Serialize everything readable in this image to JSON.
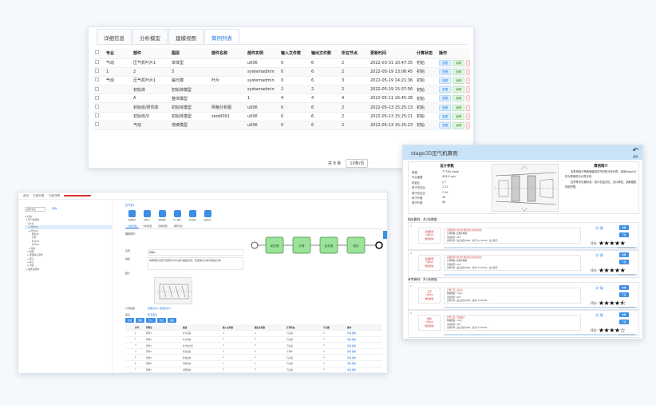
{
  "panel1": {
    "tabs": [
      "详细信息",
      "分析模型",
      "建模视图",
      "算例列表"
    ],
    "active_tab": 3,
    "columns": [
      "",
      "专业",
      "部件",
      "图层",
      "部件名称",
      "部件实例",
      "输入文件数",
      "输出文件数",
      "所在节点",
      "更新时间",
      "计算状态",
      "操作"
    ],
    "rows": [
      [
        "",
        "气动",
        "压气机叶片1",
        "单体型",
        "",
        "u006",
        "0",
        "6",
        "2",
        "2022-03-31 10:47:35",
        "初始"
      ],
      [
        "",
        "1",
        "2",
        "3",
        "",
        "systemadmin",
        "0",
        "6",
        "2",
        "2022-05-19 13:06:45",
        "初始"
      ],
      [
        "",
        "气动",
        "压气机叶片1",
        "扁元模",
        "叶片",
        "systemadmin",
        "0",
        "6",
        "3",
        "2022-05-19 14:21:36",
        "初始"
      ],
      [
        "",
        "",
        "初始体",
        "初始体模型",
        "",
        "systemadmin",
        "2",
        "2",
        "2",
        "2022-05-19 15:37:56",
        "初始"
      ],
      [
        "",
        "",
        "A",
        "整体模型",
        "",
        "1",
        "4",
        "4",
        "4",
        "2022-05-11 16:45:38",
        "初始"
      ],
      [
        "",
        "",
        "初始体/研究体",
        "初始体模型",
        "网格分析图",
        "u006",
        "0",
        "6",
        "2",
        "2022-05-13 15:25:13",
        "初始"
      ],
      [
        "",
        "",
        "初始体/0",
        "初始体模型",
        "zeobl001",
        "u006",
        "0",
        "6",
        "2",
        "2022-05-13 15:25:21",
        "初始"
      ],
      [
        "",
        "",
        "气动",
        "地坡模型",
        "",
        "u006",
        "0",
        "6",
        "2",
        "2022-05-13 15:25:23",
        "初始"
      ]
    ],
    "actions": [
      "查看",
      "编辑",
      "删除"
    ],
    "pager_total": "共 8 条",
    "pager_size": "10条/页",
    "pager_prev": "‹"
  },
  "panel2": {
    "topbar": [
      "首页",
      "方案列表",
      "方案详情"
    ],
    "tree_select": "选择专业",
    "tree_go": "查询",
    "tree_items": [
      "▾ 方案1",
      "  ▾ 压气机结构",
      "    ▾ 叶片",
      "      ▸ 叶片01",
      "      ▸ 叶片02",
      "        · 研究体",
      "        · 分析",
      "        · 叶片03",
      "        · 叶片04",
      "      ▸ 轮盘",
      "    ▸ 机匣",
      "    ▸ 整体静子组件",
      "    ▸ 转子",
      "    ▸ 静子",
      "    ▸ 流道",
      "  ▸ 燃烧室结构"
    ],
    "tree_highlight": 3,
    "crumb": "压气机1",
    "tools": [
      "创建算例",
      "模型树",
      "参数模板",
      "导入模型",
      "导出模型",
      "结果分析"
    ],
    "subtabs": [
      "分析流程",
      "分析模型",
      "建模视图",
      "算例列表"
    ],
    "section_title": "算例简介",
    "form": [
      {
        "label": "名称",
        "value": "算例1"
      },
      {
        "label": "描述",
        "value": "本算例针对压气机转子叶片进行强度分析，包含静力分析与模态分析"
      },
      {
        "label": "图片",
        "value": ""
      },
      {
        "label": "计算结果",
        "value": "结果文件1  结果文件2"
      },
      {
        "label": "备注",
        "value": "暂无备注"
      }
    ],
    "flow_nodes": [
      "前处理",
      "计算",
      "后处理",
      "报告"
    ],
    "buttons": [
      "新增",
      "删除",
      "导入",
      "导出",
      "刷新"
    ],
    "table_columns": [
      "",
      "序号",
      "算例名",
      "描述",
      "输入文件数",
      "输出文件数",
      "计算状态",
      "节点数",
      "操作"
    ],
    "table_rows": [
      [
        "",
        "1",
        "算例1",
        "叶片强度",
        "2",
        "2",
        "已完成",
        "2",
        "查看 删除"
      ],
      [
        "",
        "2",
        "算例2",
        "叶片模态",
        "2",
        "2",
        "已完成",
        "2",
        "查看 删除"
      ],
      [
        "",
        "3",
        "算例3",
        "叶片热分析",
        "2",
        "2",
        "已完成",
        "2",
        "查看 删除"
      ],
      [
        "",
        "4",
        "算例4",
        "轮盘强度",
        "2",
        "2",
        "计算中",
        "2",
        "查看 删除"
      ],
      [
        "",
        "5",
        "算例5",
        "轮盘模态",
        "2",
        "2",
        "已完成",
        "2",
        "查看 删除"
      ],
      [
        "",
        "6",
        "算例6",
        "机匣强度",
        "2",
        "2",
        "已完成",
        "2",
        "查看 删除"
      ],
      [
        "",
        "7",
        "算例7",
        "机匣模态",
        "2",
        "2",
        "已完成",
        "2",
        "查看 删除"
      ]
    ]
  },
  "panel3": {
    "title": "stage35压气机算例",
    "back_label": "返回",
    "params_title": "设计参数",
    "params": [
      [
        "转速",
        "17188 r/min"
      ],
      [
        "叶尖速度",
        "454.8 m/s"
      ],
      [
        "轮毂比",
        "0.7"
      ],
      [
        "转子总压比",
        "1.33"
      ],
      [
        "静子总压比",
        "1.26"
      ],
      [
        "转子叶数",
        "36"
      ],
      [
        "静子叶数",
        "46"
      ]
    ],
    "intro_title": "算例简介",
    "intro": [
      "本算例用于跨音速轴流压气机的分析计算，采用stage35作为算例进行计算分析。",
      "边界条件设置标准：进口总温总压，出口静压，选取模型采用完整。"
    ],
    "section1": "相似算例：共2条数据",
    "section2": "参考算例：共2条数据",
    "cards": [
      {
        "no": "1",
        "left": [
          "基础模型",
          "计算3D",
          "数值模拟"
        ],
        "mid": [
          "试算模型叶片的计算结果与参考值对比",
          "计算网格: 结构化网格",
          "湍流模型: SST",
          "边界条件: 进口总温288K，总压101325Pa，出口静压..."
        ],
        "detail": "详 情",
        "btns": [
          "收藏",
          "下载",
          "单元建模",
          "全局建模"
        ],
        "score_label": "评分:",
        "stars": "★★★★★",
        "time": "2022/05/13 09:20"
      },
      {
        "no": "2",
        "left": [
          "基础模型",
          "计算3D",
          "数值模拟"
        ],
        "mid": [
          "试算模型叶片的计算结果与参考值对比",
          "计算网格: 结构化网格",
          "湍流模型: SST",
          "边界条件: 进口总温288K，总压101325Pa，出口静压..."
        ],
        "detail": "详 情",
        "btns": [
          "收藏",
          "下载",
          "单元建模",
          "全局建模"
        ],
        "score_label": "评分:",
        "stars": "★★★★★",
        "time": "2022/05/13 09:20"
      },
      {
        "no": "1",
        "left": [
          "工况",
          "计算3D",
          "数值模拟"
        ],
        "mid": [
          "计算工况: 设计点",
          "网格数量: 120万",
          "湍流模型: SST",
          "边界条件: 进口总温288K，总压101325Pa..."
        ],
        "detail": "详 情",
        "btns": [
          "收藏",
          "下载",
          "单元建模",
          "全局建模"
        ],
        "score_label": "评分:",
        "stars": "★★★★⯪",
        "time": "2022/05/13 09:20"
      },
      {
        "no": "2",
        "left": [
          "网格",
          "计算3D",
          "数值模拟"
        ],
        "mid": [
          "计算工况: 近失速点",
          "网格数量: 120万",
          "湍流模型: SST",
          "边界条件: 进口总温288K，总压101325Pa..."
        ],
        "detail": "详 情",
        "btns": [
          "收藏",
          "下载",
          "单元建模",
          "全局建模"
        ],
        "score_label": "评分:",
        "stars": "★★★★☆",
        "time": "2022/05/13 09:20"
      }
    ]
  }
}
